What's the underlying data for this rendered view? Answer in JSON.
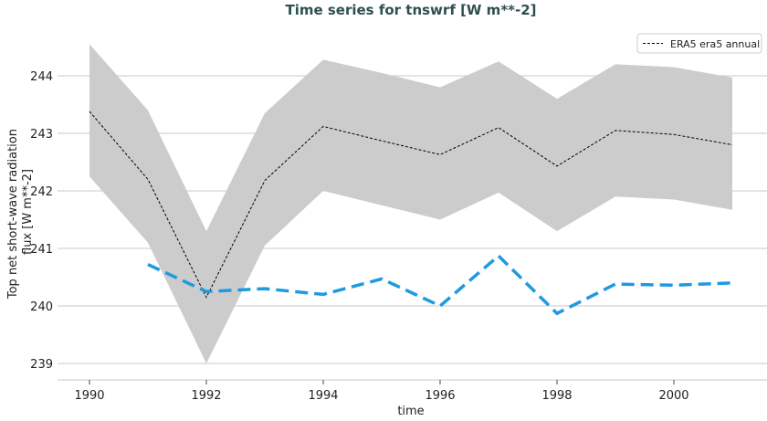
{
  "chart_data": {
    "type": "line",
    "title": "Time series for tnswrf [W m**-2]",
    "xlabel": "time",
    "ylabel_lines": [
      "Top net short-wave radiation",
      "flux [W m**-2]"
    ],
    "xlim": [
      1989.4,
      2002.6
    ],
    "ylim": [
      238.7,
      244.7
    ],
    "xticks": [
      1990,
      1992,
      1994,
      1996,
      1998,
      2000
    ],
    "yticks": [
      239,
      240,
      241,
      242,
      243,
      244
    ],
    "grid": "horizontal",
    "legend_placement": "top-right",
    "x": [
      1990,
      1991,
      1992,
      1993,
      1994,
      1995,
      1996,
      1997,
      1998,
      1999,
      2000,
      2001
    ],
    "band": {
      "color": "#cccccc",
      "upper": [
        244.55,
        243.4,
        241.3,
        243.35,
        244.28,
        244.05,
        243.8,
        244.25,
        243.6,
        244.2,
        244.15,
        243.97
      ],
      "lower": [
        242.25,
        241.1,
        239.0,
        241.05,
        242.0,
        241.75,
        241.5,
        241.97,
        241.3,
        241.9,
        241.85,
        241.67
      ]
    },
    "series": [
      {
        "name": "ERA5 era5 annual",
        "color": "#000000",
        "style": "dotted-dash",
        "values": [
          243.38,
          242.2,
          240.15,
          242.18,
          243.12,
          242.87,
          242.63,
          243.1,
          242.43,
          243.05,
          242.98,
          242.8
        ]
      },
      {
        "color": "#1f9ae0",
        "style": "dashed-thick",
        "values": [
          null,
          240.72,
          240.25,
          240.3,
          240.2,
          240.47,
          240.0,
          240.87,
          239.87,
          240.38,
          240.36,
          240.4
        ]
      }
    ],
    "title_color": "#2f4f4f"
  }
}
